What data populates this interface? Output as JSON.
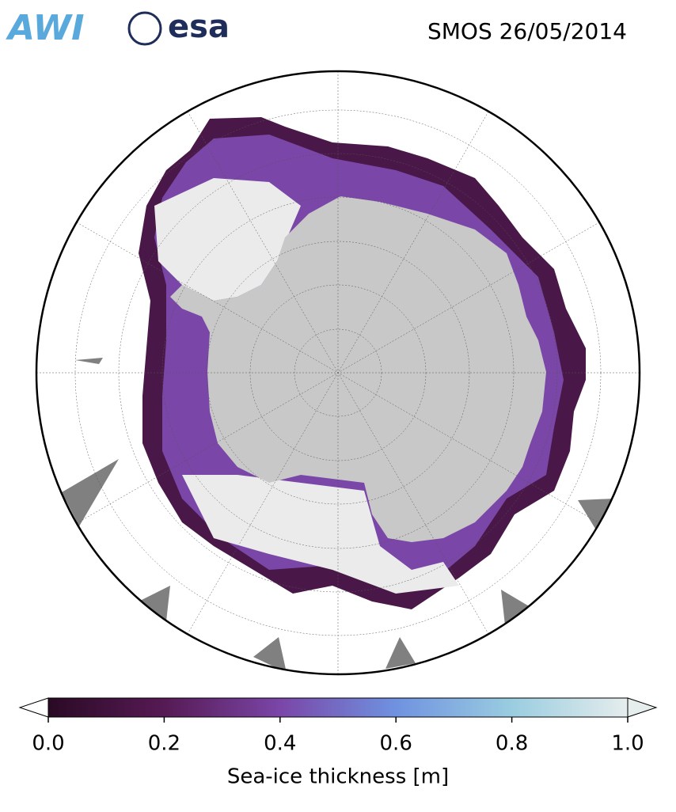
{
  "header": {
    "logos": [
      "AWI",
      "esa"
    ],
    "title": "SMOS 26/05/2014"
  },
  "colorbar": {
    "label": "Sea-ice thickness [m]",
    "lim": [
      0,
      1
    ],
    "ticks": [
      {
        "value": 0,
        "label": "0.0"
      },
      {
        "value": 0.2,
        "label": "0.2"
      },
      {
        "value": 0.4,
        "label": "0.4"
      },
      {
        "value": 0.6,
        "label": "0.6"
      },
      {
        "value": 0.8,
        "label": "0.8"
      },
      {
        "value": 1,
        "label": "1.0"
      }
    ],
    "cmap": [
      "#2a0a25",
      "#561a54",
      "#7a46a8",
      "#6f92e0",
      "#9acde0",
      "#e6eded"
    ]
  }
}
